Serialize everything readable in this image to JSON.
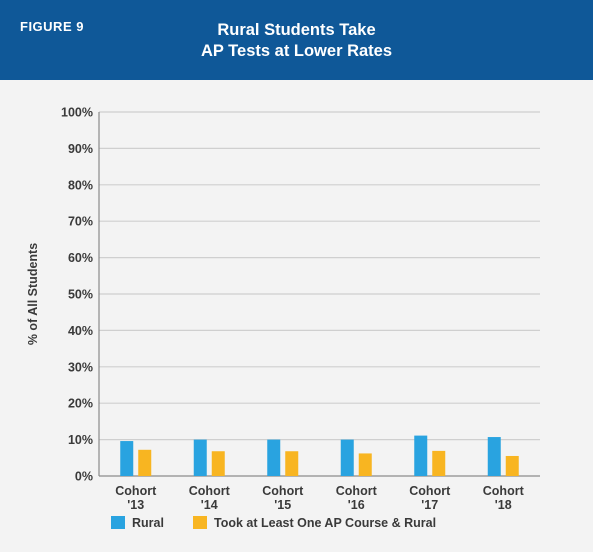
{
  "figure_label": "FIGURE 9",
  "title_line1": "Rural Students Take",
  "title_line2": "AP Tests at Lower Rates",
  "colors": {
    "header_bg": "#0f5898",
    "rural": "#29a3e0",
    "ap_rural": "#f8b521",
    "grid": "#cfcfcf",
    "axis": "#8a8a8a"
  },
  "chart_data": {
    "type": "bar",
    "title": "Rural Students Take AP Tests at Lower Rates",
    "ylabel": "% of All Students",
    "xlabel": "",
    "ylim": [
      0,
      100
    ],
    "yticks": [
      0,
      10,
      20,
      30,
      40,
      50,
      60,
      70,
      80,
      90,
      100
    ],
    "ytick_labels": [
      "0%",
      "10%",
      "20%",
      "30%",
      "40%",
      "50%",
      "60%",
      "70%",
      "80%",
      "90%",
      "100%"
    ],
    "categories": [
      [
        "Cohort",
        "'13"
      ],
      [
        "Cohort",
        "'14"
      ],
      [
        "Cohort",
        "'15"
      ],
      [
        "Cohort",
        "'16"
      ],
      [
        "Cohort",
        "'17"
      ],
      [
        "Cohort",
        "'18"
      ]
    ],
    "series": [
      {
        "name": "Rural",
        "values": [
          9.6,
          10.0,
          10.0,
          10.0,
          11.1,
          10.7
        ]
      },
      {
        "name": "Took at Least One AP Course & Rural",
        "values": [
          7.2,
          6.8,
          6.8,
          6.2,
          6.9,
          5.5
        ]
      }
    ],
    "grid": true,
    "legend_position": "bottom"
  }
}
